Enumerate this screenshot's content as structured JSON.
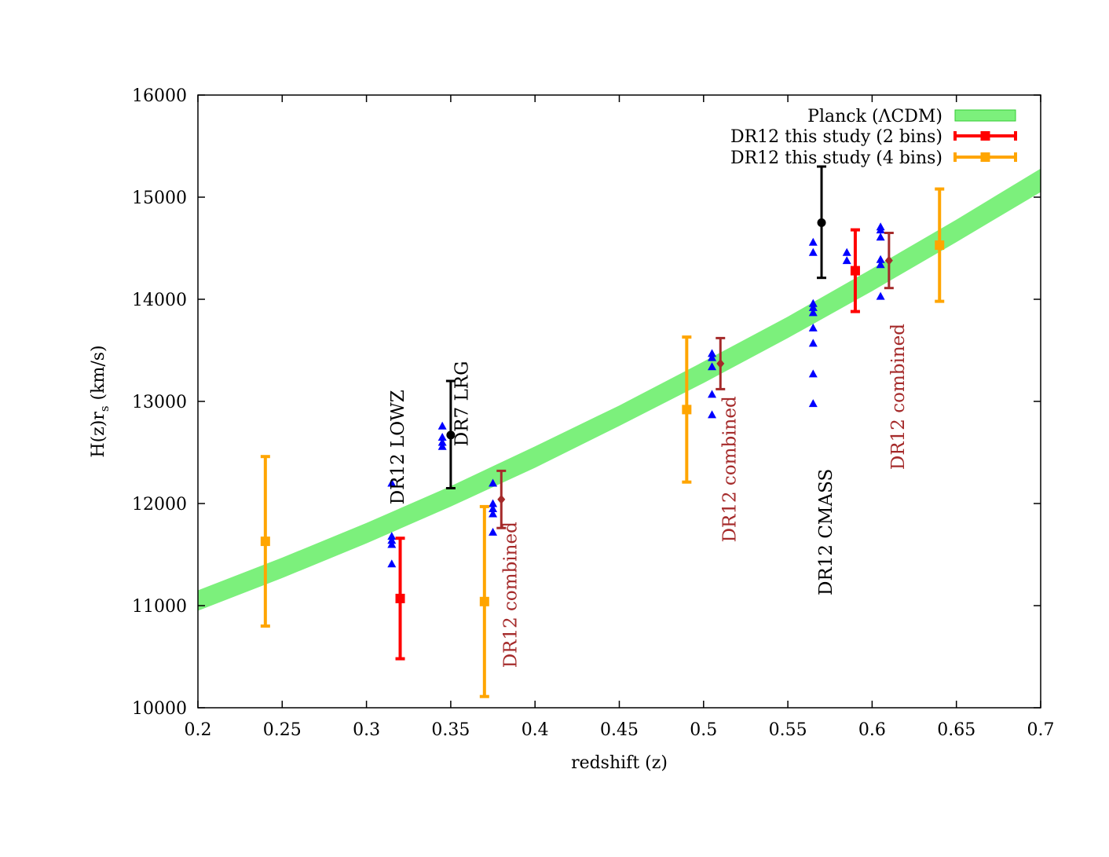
{
  "chart_data": {
    "type": "scatter",
    "xlabel": "redshift (z)",
    "ylabel_main": "H(z)r",
    "ylabel_sub": "s",
    "ylabel_unit": " (km/s)",
    "xlim": [
      0.2,
      0.7
    ],
    "ylim": [
      10000,
      16000
    ],
    "x_ticks": [
      "0.2",
      "0.25",
      "0.3",
      "0.35",
      "0.4",
      "0.45",
      "0.5",
      "0.55",
      "0.6",
      "0.65",
      "0.7"
    ],
    "y_ticks": [
      "10000",
      "11000",
      "12000",
      "13000",
      "14000",
      "15000",
      "16000"
    ],
    "grid": false,
    "legend_position": "top-right",
    "colors": {
      "planck": "#7cf07c",
      "two_bins": "#ff0000",
      "four_bins": "#ffa500",
      "blue_markers": "#0000ff",
      "combined": "#a52a2a",
      "black": "#000000"
    },
    "band": {
      "name": "Planck (ΛCDM)",
      "x": [
        0.2,
        0.25,
        0.3,
        0.35,
        0.4,
        0.45,
        0.5,
        0.55,
        0.6,
        0.65,
        0.7
      ],
      "lower": [
        10950,
        11270,
        11610,
        11970,
        12350,
        12760,
        13180,
        13620,
        14080,
        14560,
        15050
      ],
      "upper": [
        11150,
        11470,
        11810,
        12170,
        12560,
        12960,
        13390,
        13830,
        14300,
        14780,
        15280
      ]
    },
    "series_two_bins": {
      "name": "DR12 this study (2 bins)",
      "points": [
        {
          "x": 0.32,
          "y": 11070,
          "ylow": 10480,
          "yhigh": 11660
        },
        {
          "x": 0.59,
          "y": 14280,
          "ylow": 13880,
          "yhigh": 14680
        }
      ]
    },
    "series_four_bins": {
      "name": "DR12 this study (4 bins)",
      "points": [
        {
          "x": 0.24,
          "y": 11630,
          "ylow": 10800,
          "yhigh": 12460
        },
        {
          "x": 0.37,
          "y": 11040,
          "ylow": 10110,
          "yhigh": 11970
        },
        {
          "x": 0.49,
          "y": 12920,
          "ylow": 12210,
          "yhigh": 13630
        },
        {
          "x": 0.64,
          "y": 14530,
          "ylow": 13980,
          "yhigh": 15080
        }
      ]
    },
    "black_points": [
      {
        "x": 0.35,
        "y": 12670,
        "ylow": 12150,
        "yhigh": 13200
      },
      {
        "x": 0.57,
        "y": 14750,
        "ylow": 14210,
        "yhigh": 15300
      }
    ],
    "combined_points": [
      {
        "x": 0.38,
        "y": 12040,
        "ylow": 11760,
        "yhigh": 12320
      },
      {
        "x": 0.51,
        "y": 13370,
        "ylow": 13120,
        "yhigh": 13620
      },
      {
        "x": 0.61,
        "y": 14380,
        "ylow": 14110,
        "yhigh": 14650
      }
    ],
    "blue_markers": [
      {
        "x": 0.315,
        "y": 12200
      },
      {
        "x": 0.315,
        "y": 11680
      },
      {
        "x": 0.315,
        "y": 11640
      },
      {
        "x": 0.315,
        "y": 11600
      },
      {
        "x": 0.315,
        "y": 11410
      },
      {
        "x": 0.345,
        "y": 12760
      },
      {
        "x": 0.345,
        "y": 12650
      },
      {
        "x": 0.345,
        "y": 12600
      },
      {
        "x": 0.345,
        "y": 12560
      },
      {
        "x": 0.375,
        "y": 12200
      },
      {
        "x": 0.375,
        "y": 12000
      },
      {
        "x": 0.375,
        "y": 11950
      },
      {
        "x": 0.375,
        "y": 11900
      },
      {
        "x": 0.375,
        "y": 11720
      },
      {
        "x": 0.505,
        "y": 13470
      },
      {
        "x": 0.505,
        "y": 13430
      },
      {
        "x": 0.505,
        "y": 13340
      },
      {
        "x": 0.505,
        "y": 13070
      },
      {
        "x": 0.505,
        "y": 12870
      },
      {
        "x": 0.565,
        "y": 14560
      },
      {
        "x": 0.565,
        "y": 14460
      },
      {
        "x": 0.565,
        "y": 13960
      },
      {
        "x": 0.565,
        "y": 13920
      },
      {
        "x": 0.565,
        "y": 13870
      },
      {
        "x": 0.565,
        "y": 13720
      },
      {
        "x": 0.565,
        "y": 13570
      },
      {
        "x": 0.565,
        "y": 13270
      },
      {
        "x": 0.565,
        "y": 12980
      },
      {
        "x": 0.585,
        "y": 14460
      },
      {
        "x": 0.585,
        "y": 14380
      },
      {
        "x": 0.605,
        "y": 14710
      },
      {
        "x": 0.605,
        "y": 14680
      },
      {
        "x": 0.605,
        "y": 14610
      },
      {
        "x": 0.605,
        "y": 14390
      },
      {
        "x": 0.605,
        "y": 14340
      },
      {
        "x": 0.605,
        "y": 14030
      }
    ],
    "annotations": [
      {
        "text": "DR12 LOWZ",
        "x": 0.322,
        "y": 11990,
        "color": "#000000"
      },
      {
        "text": "DR7 LRG",
        "x": 0.36,
        "y": 12560,
        "color": "#000000"
      },
      {
        "text": "DR12 combined",
        "x": 0.389,
        "y": 10390,
        "color": "#a52a2a"
      },
      {
        "text": "DR12 combined",
        "x": 0.519,
        "y": 11620,
        "color": "#a52a2a"
      },
      {
        "text": "DR12 CMASS",
        "x": 0.576,
        "y": 11100,
        "color": "#000000"
      },
      {
        "text": "DR12 combined",
        "x": 0.619,
        "y": 12330,
        "color": "#a52a2a"
      }
    ]
  }
}
